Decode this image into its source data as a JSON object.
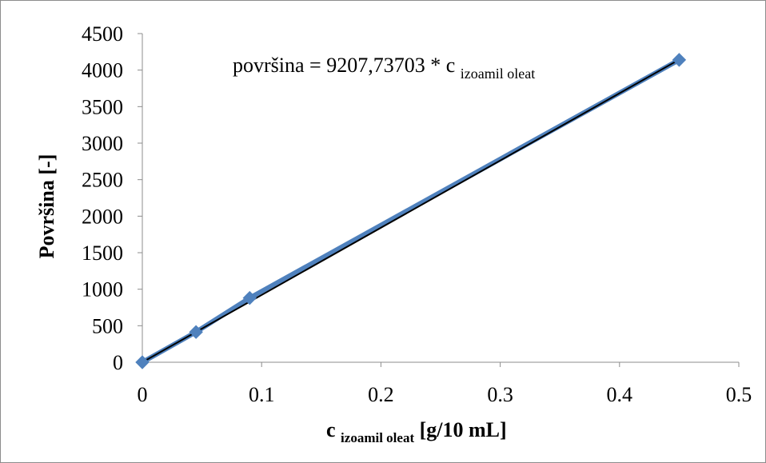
{
  "chart_data": {
    "type": "scatter",
    "x": [
      0,
      0.045,
      0.09,
      0.45
    ],
    "series": [
      {
        "values": [
          0,
          414,
          880,
          4140
        ]
      }
    ],
    "trendline": {
      "slope": 9207.73703,
      "intercept": 0
    },
    "equation": {
      "prefix": "površina = 9207,73703 * c ",
      "subscript": "izoamil oleat"
    },
    "xlabel": {
      "main": "c ",
      "subscript": "izoamil oleat",
      "suffix": "  [g/10 mL]"
    },
    "ylabel": "Površina  [-]",
    "xlim": [
      0,
      0.5
    ],
    "ylim": [
      0,
      4500
    ],
    "x_ticks": [
      "0",
      "0.1",
      "0.2",
      "0.3",
      "0.4",
      "0.5"
    ],
    "y_ticks": [
      "0",
      "500",
      "1000",
      "1500",
      "2000",
      "2500",
      "3000",
      "3500",
      "4000",
      "4500"
    ],
    "grid": false,
    "legend": "none",
    "colors": {
      "marker": "#4f81bd",
      "trendline": "#000000",
      "axis": "#8c8c8c"
    }
  }
}
